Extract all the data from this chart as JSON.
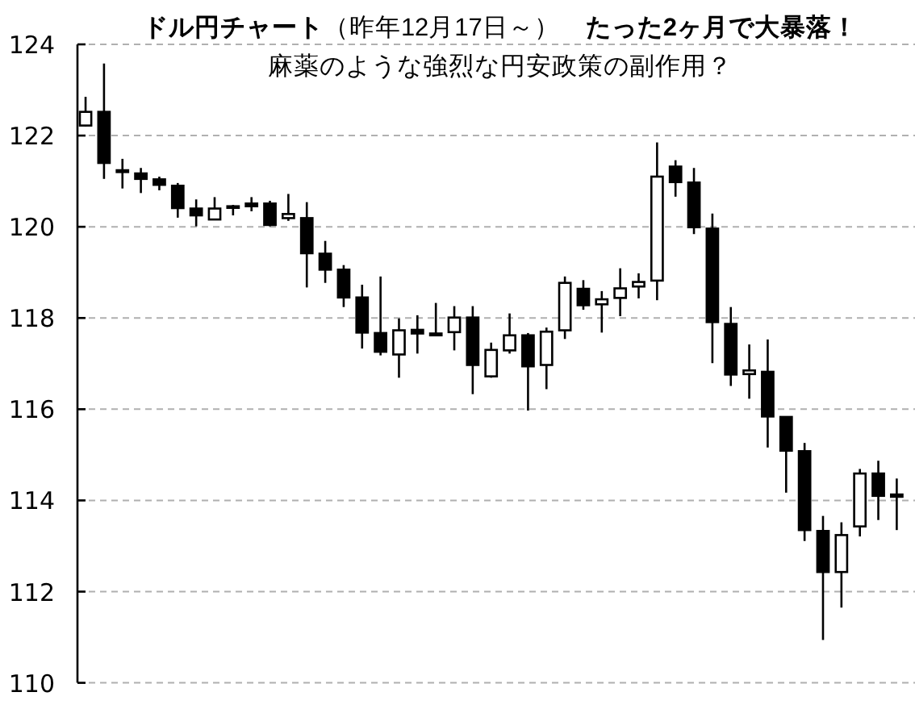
{
  "chart_data": {
    "type": "candlestick",
    "title": "**ドル円チャート**（昨年12月17日～）　**たった2ヶ月で大暴落！**",
    "subtitle": "麻薬のような強烈な円安政策の副作用？",
    "categories": [
      null,
      null,
      null,
      null,
      null,
      null,
      null,
      null,
      null,
      null,
      null,
      null,
      null,
      null,
      null,
      null,
      null,
      null,
      null,
      null,
      null,
      null,
      null,
      null,
      null,
      null,
      null,
      null,
      null,
      null,
      null,
      null,
      null,
      null,
      null,
      null,
      null,
      null,
      null,
      null,
      null,
      null,
      null,
      null,
      null
    ],
    "ohlc": [
      [
        122.22,
        122.85,
        122.2,
        122.52
      ],
      [
        122.52,
        123.58,
        121.05,
        121.4
      ],
      [
        121.24,
        121.49,
        120.84,
        121.2
      ],
      [
        121.17,
        121.29,
        120.74,
        121.05
      ],
      [
        121.04,
        121.1,
        120.8,
        120.92
      ],
      [
        120.9,
        120.96,
        120.2,
        120.41
      ],
      [
        120.4,
        120.6,
        120.01,
        120.25
      ],
      [
        120.16,
        120.65,
        120.16,
        120.4
      ],
      [
        120.45,
        120.48,
        120.25,
        120.45
      ],
      [
        120.51,
        120.65,
        120.34,
        120.45
      ],
      [
        120.51,
        120.57,
        120.01,
        120.04
      ],
      [
        120.19,
        120.72,
        120.13,
        120.28
      ],
      [
        120.19,
        120.54,
        118.67,
        119.42
      ],
      [
        119.41,
        119.69,
        118.77,
        119.06
      ],
      [
        119.06,
        119.16,
        118.24,
        118.45
      ],
      [
        118.45,
        118.73,
        117.33,
        117.68
      ],
      [
        117.67,
        118.91,
        117.18,
        117.26
      ],
      [
        117.2,
        117.99,
        116.69,
        117.73
      ],
      [
        117.74,
        118.06,
        117.22,
        117.66
      ],
      [
        117.66,
        118.33,
        117.61,
        117.62
      ],
      [
        117.69,
        118.26,
        117.29,
        118.01
      ],
      [
        118.01,
        118.26,
        116.33,
        116.97
      ],
      [
        116.72,
        117.46,
        116.69,
        117.3
      ],
      [
        117.29,
        118.1,
        117.22,
        117.62
      ],
      [
        117.62,
        117.67,
        115.97,
        116.94
      ],
      [
        116.97,
        117.79,
        116.44,
        117.7
      ],
      [
        117.73,
        118.91,
        117.54,
        118.77
      ],
      [
        118.64,
        118.83,
        118.18,
        118.28
      ],
      [
        118.3,
        118.59,
        117.68,
        118.41
      ],
      [
        118.44,
        119.09,
        118.04,
        118.65
      ],
      [
        118.69,
        118.98,
        118.43,
        118.79
      ],
      [
        118.82,
        121.85,
        118.39,
        121.1
      ],
      [
        121.32,
        121.46,
        120.66,
        120.98
      ],
      [
        120.97,
        121.29,
        119.84,
        119.99
      ],
      [
        119.96,
        120.29,
        117.01,
        117.91
      ],
      [
        117.87,
        118.24,
        116.51,
        116.76
      ],
      [
        116.77,
        117.42,
        116.23,
        116.85
      ],
      [
        116.82,
        117.53,
        115.16,
        115.84
      ],
      [
        115.83,
        115.83,
        114.17,
        115.09
      ],
      [
        115.08,
        115.26,
        113.11,
        113.35
      ],
      [
        113.33,
        113.66,
        110.94,
        112.43
      ],
      [
        112.43,
        113.52,
        111.65,
        113.24
      ],
      [
        113.43,
        114.69,
        113.21,
        114.59
      ],
      [
        114.59,
        114.87,
        113.57,
        114.1
      ],
      [
        114.13,
        114.48,
        113.35,
        114.08
      ]
    ],
    "ylim": [
      110,
      124
    ],
    "yticks": [
      110,
      112,
      114,
      116,
      118,
      120,
      122,
      124
    ],
    "grid": "y",
    "tick_labels": "y"
  }
}
